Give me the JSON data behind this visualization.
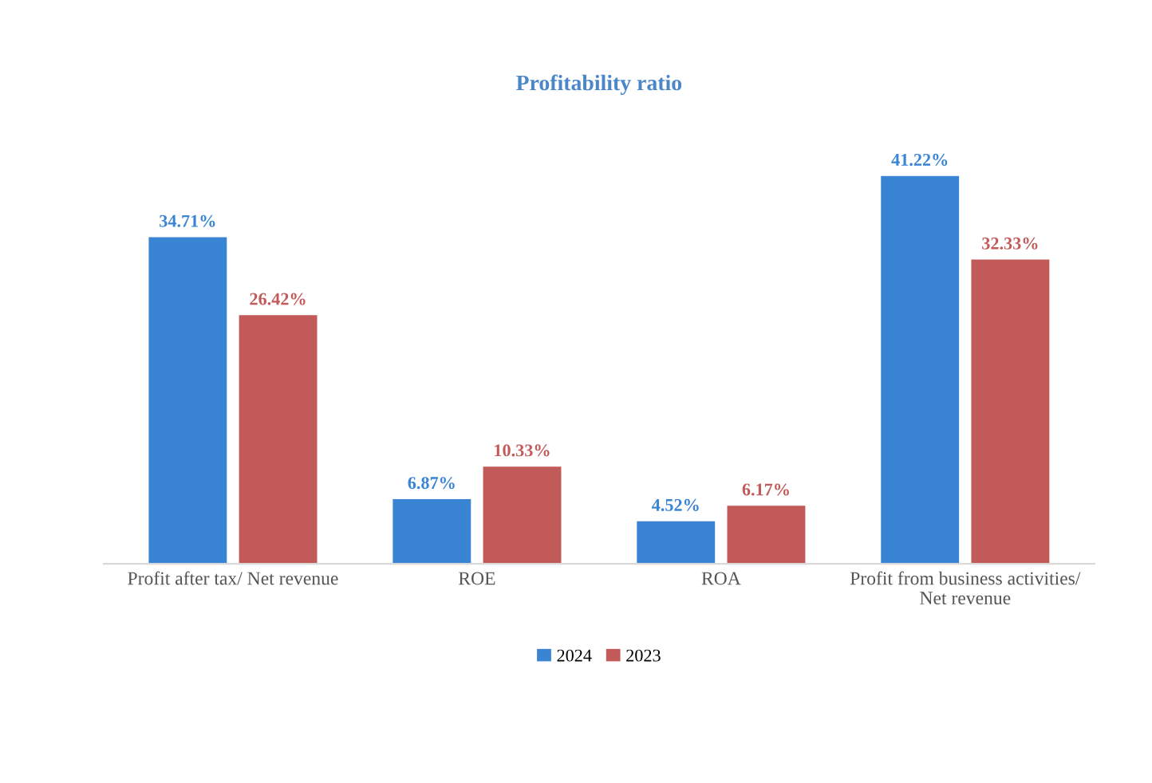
{
  "chart_data": {
    "type": "bar",
    "title": "Profitability ratio",
    "categories": [
      "Profit after tax/ Net revenue",
      "ROE",
      "ROA",
      "Profit from business activities/\nNet revenue"
    ],
    "series": [
      {
        "name": "2024",
        "color": "#3a84d4",
        "values": [
          34.71,
          6.87,
          4.52,
          41.22
        ],
        "value_labels": [
          "34.71%",
          "6.87%",
          "4.52%",
          "41.22%"
        ]
      },
      {
        "name": "2023",
        "color": "#c25a5a",
        "values": [
          26.42,
          10.33,
          6.17,
          32.33
        ],
        "value_labels": [
          "26.42%",
          "10.33%",
          "6.17%",
          "32.33%"
        ]
      }
    ],
    "legend": "bottom",
    "grid": false,
    "tick_labels": "x"
  }
}
